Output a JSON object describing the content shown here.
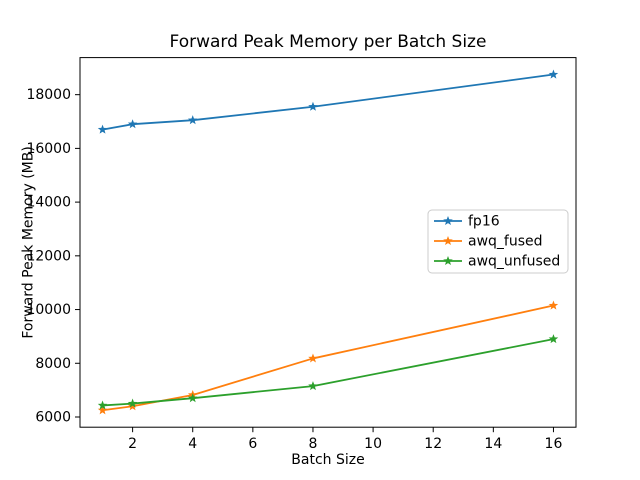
{
  "figure": {
    "background": "#ffffff"
  },
  "chart_data": {
    "type": "line",
    "title": "Forward Peak Memory per Batch Size",
    "xlabel": "Batch Size",
    "ylabel": "Forward Peak Memory (MB)",
    "x": [
      1,
      2,
      4,
      8,
      16
    ],
    "series": [
      {
        "name": "fp16",
        "color": "#1f77b4",
        "values": [
          16700,
          16900,
          17050,
          17550,
          18750
        ]
      },
      {
        "name": "awq_fused",
        "color": "#ff7f0e",
        "values": [
          6250,
          6400,
          6820,
          8180,
          10150
        ]
      },
      {
        "name": "awq_unfused",
        "color": "#2ca02c",
        "values": [
          6430,
          6500,
          6700,
          7150,
          8900
        ]
      }
    ],
    "xlim": [
      0.25,
      16.75
    ],
    "ylim": [
      5620,
      19380
    ],
    "xticks": [
      2,
      4,
      6,
      8,
      10,
      12,
      14,
      16
    ],
    "yticks": [
      6000,
      8000,
      10000,
      12000,
      14000,
      16000,
      18000
    ],
    "marker": "star",
    "grid": false,
    "legend_position": "center right",
    "legend_border_color": "#cccccc",
    "axis_color": "#000000"
  }
}
